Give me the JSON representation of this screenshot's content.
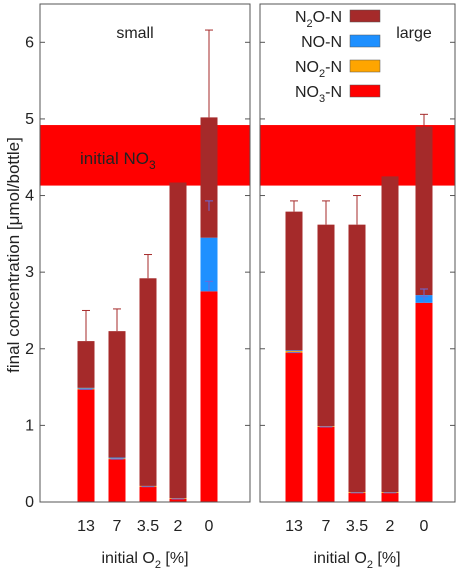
{
  "chart_data": {
    "type": "bar",
    "stacked": true,
    "ylabel": "final concentration [µmol/bottle]",
    "ylim": [
      0,
      6.5
    ],
    "yticks": [
      0,
      1,
      2,
      3,
      4,
      5,
      6
    ],
    "ylabel_text": "final concentration [μmol/bottle]",
    "xlabel_prefix": "initial O",
    "xlabel_sub": "2",
    "xlabel_suffix": " [%]",
    "categories": [
      "13",
      "7",
      "3.5",
      "2",
      "0"
    ],
    "band": {
      "label_main": "initial NO",
      "label_sub": "3",
      "from": 4.13,
      "to": 4.92,
      "color": "#ff0000"
    },
    "legend": {
      "placement": "top-right of left panel",
      "entries": [
        {
          "key": "N2O",
          "parts": [
            "N",
            "2",
            "O-N"
          ],
          "color": "#a52a2a"
        },
        {
          "key": "NO",
          "parts": [
            "NO-N",
            "",
            ""
          ],
          "color": "#1e90ff"
        },
        {
          "key": "NO2",
          "parts": [
            "NO",
            "2",
            "-N"
          ],
          "color": "#ffa500"
        },
        {
          "key": "NO3",
          "parts": [
            "NO",
            "3",
            "-N"
          ],
          "color": "#ff0000"
        }
      ]
    },
    "colors": {
      "NO3": "#ff0000",
      "NO2": "#ffa500",
      "NO": "#1e90ff",
      "N2O": "#a52a2a",
      "error": "#a52a2a",
      "error_blue": "#6a6ad8"
    },
    "panels": [
      {
        "title": "small",
        "series": [
          {
            "name": "NO3-N",
            "values": [
              1.47,
              0.56,
              0.2,
              0.04,
              2.75
            ]
          },
          {
            "name": "NO2-N",
            "values": [
              0.01,
              0.01,
              0.01,
              0.01,
              0.0
            ]
          },
          {
            "name": "NO-N",
            "values": [
              0.01,
              0.01,
              0.0,
              0.0,
              0.7
            ]
          },
          {
            "name": "N2O-N",
            "values": [
              0.61,
              1.65,
              2.71,
              4.12,
              1.57
            ]
          }
        ],
        "totals": [
          2.1,
          2.23,
          2.92,
          4.17,
          5.02
        ],
        "errors": [
          0.4,
          0.29,
          0.31,
          0.0,
          1.14
        ],
        "no3_err": [
          0,
          0,
          0,
          0,
          0.13
        ],
        "no_err_top": [
          0,
          0,
          0,
          0,
          3.93
        ]
      },
      {
        "title": "large",
        "series": [
          {
            "name": "NO3-N",
            "values": [
              1.95,
              0.98,
              0.12,
              0.12,
              2.6
            ]
          },
          {
            "name": "NO2-N",
            "values": [
              0.02,
              0.01,
              0.01,
              0.01,
              0.0
            ]
          },
          {
            "name": "NO-N",
            "values": [
              0.01,
              0.0,
              0.0,
              0.0,
              0.1
            ]
          },
          {
            "name": "N2O-N",
            "values": [
              1.81,
              2.63,
              3.49,
              4.12,
              2.2
            ]
          }
        ],
        "totals": [
          3.79,
          3.62,
          3.62,
          4.25,
          4.9
        ],
        "errors": [
          0.14,
          0.31,
          0.38,
          0.0,
          0.16
        ],
        "no3_err": [
          0,
          0,
          0,
          0,
          0.08
        ],
        "no_err_top": [
          0,
          0,
          0,
          0,
          2.78
        ]
      }
    ]
  }
}
